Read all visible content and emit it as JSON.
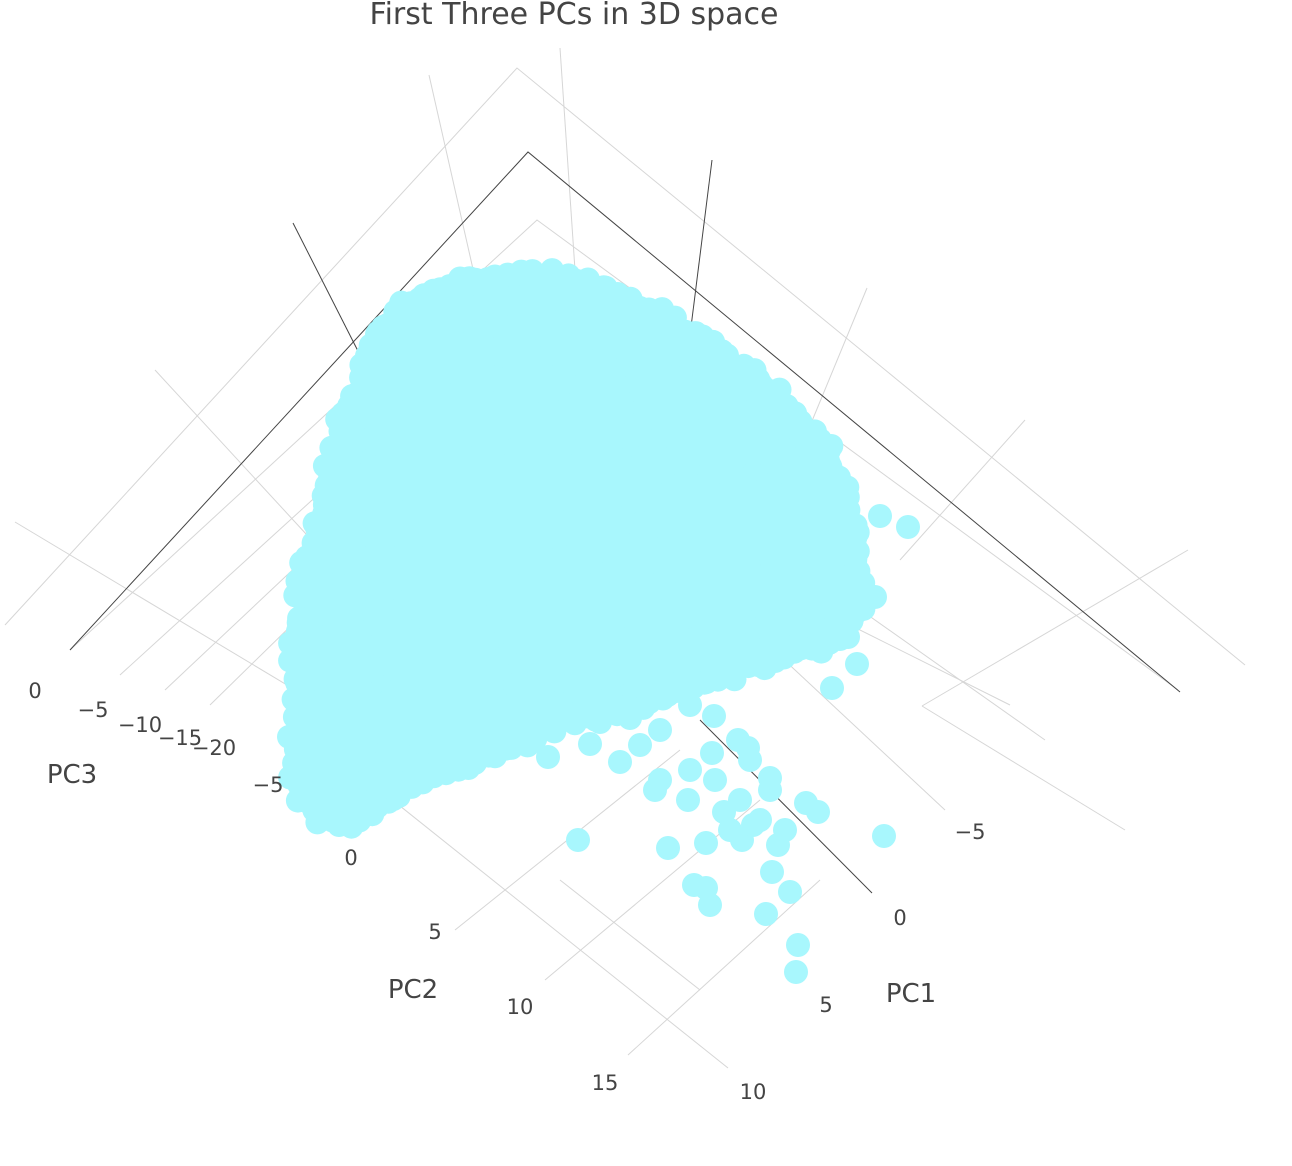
{
  "chart_data": {
    "type": "scatter3d",
    "title": "First Three PCs in 3D space",
    "marker_color": "#a8f7fd",
    "axes": {
      "x": {
        "label": "PC1",
        "ticks": [
          "−5",
          "0",
          "5",
          "10"
        ]
      },
      "y": {
        "label": "PC2",
        "ticks": [
          "−5",
          "0",
          "5",
          "10",
          "15"
        ]
      },
      "z": {
        "label": "PC3",
        "ticks": [
          "0",
          "−5",
          "−10",
          "−15",
          "−20"
        ]
      }
    },
    "grid": true,
    "legend": "none"
  }
}
